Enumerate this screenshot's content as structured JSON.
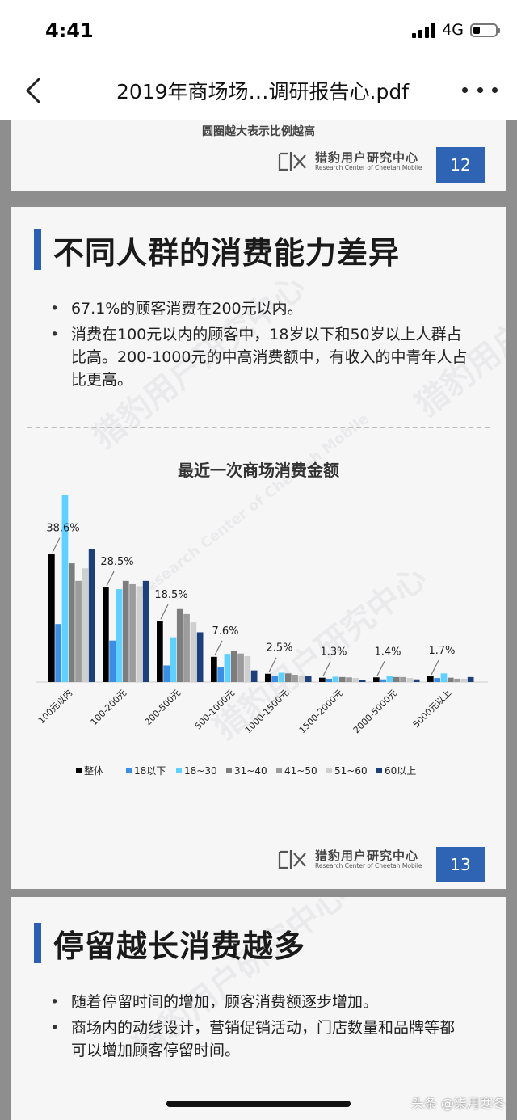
{
  "status_bar": {
    "time": "4:41",
    "network": "4G"
  },
  "nav": {
    "title": "2019年商场场…调研报告心.pdf"
  },
  "slide12": {
    "caption": "圆圈越大表示比例越高",
    "brand_cn": "猎豹用户研究中心",
    "brand_en": "Research Center of Cheetah Mobile",
    "page": "12"
  },
  "slide13": {
    "title": "不同人群的消费能力差异",
    "bullets": [
      "67.1%的顾客消费在200元以内。",
      "消费在100元以内的顾客中，18岁以下和50岁以上人群占比高。200-1000元的中高消费额中，有收入的中青年人占比更高。"
    ],
    "brand_cn": "猎豹用户研究中心",
    "brand_en": "Research Center of Cheetah Mobile",
    "page": "13"
  },
  "slide14": {
    "title": "停留越长消费越多",
    "bullets": [
      "随着停留时间的增加，顾客消费额逐步增加。",
      "商场内的动线设计，营销促销活动，门店数量和品牌等都可以增加顾客停留时间。"
    ]
  },
  "watermark": {
    "cn": "猎豹用户研究中心",
    "en": "Research Center of Cheetah Mobile"
  },
  "credit": "头条 @柒月寒冬",
  "chart_data": {
    "type": "bar",
    "title": "最近一次商场消费金额",
    "categories": [
      "100元以内",
      "100-200元",
      "200-500元",
      "500-1000元",
      "1000-1500元",
      "1500-2000元",
      "2000-5000元",
      "5000元以上"
    ],
    "data_labels": [
      "38.6%",
      "28.5%",
      "18.5%",
      "7.6%",
      "2.5%",
      "1.3%",
      "1.4%",
      "1.7%"
    ],
    "legend_position": "bottom",
    "ylim": [
      0,
      58
    ],
    "series": [
      {
        "name": "整体",
        "color": "#000000",
        "values": [
          38.6,
          28.5,
          18.5,
          7.6,
          2.5,
          1.3,
          1.4,
          1.7
        ]
      },
      {
        "name": "18以下",
        "color": "#3b8ee3",
        "values": [
          17.5,
          12.5,
          5.0,
          4.5,
          1.8,
          1.0,
          0.8,
          1.2
        ]
      },
      {
        "name": "18~30",
        "color": "#5fd0ff",
        "values": [
          56.5,
          28.0,
          13.5,
          8.5,
          2.8,
          1.6,
          1.8,
          2.6
        ]
      },
      {
        "name": "31~40",
        "color": "#7d7d7d",
        "values": [
          35.8,
          30.5,
          22.0,
          9.3,
          2.6,
          1.5,
          1.5,
          1.3
        ]
      },
      {
        "name": "41~50",
        "color": "#9c9c9c",
        "values": [
          30.5,
          29.5,
          20.5,
          8.6,
          2.2,
          1.4,
          1.5,
          1.0
        ]
      },
      {
        "name": "51~60",
        "color": "#cfcfcf",
        "values": [
          34.3,
          28.9,
          18.0,
          7.8,
          2.0,
          1.2,
          1.2,
          1.0
        ]
      },
      {
        "name": "60以上",
        "color": "#1d3f7a",
        "values": [
          40.0,
          30.5,
          15.0,
          3.5,
          1.7,
          0.5,
          0.8,
          1.5
        ]
      }
    ]
  }
}
